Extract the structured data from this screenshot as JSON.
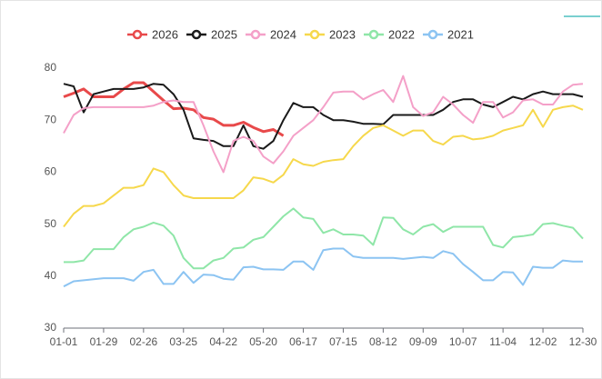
{
  "chart_data": {
    "type": "line",
    "categories": [
      "01-01",
      null,
      null,
      null,
      "01-29",
      null,
      null,
      null,
      "02-26",
      null,
      null,
      null,
      "03-25",
      null,
      null,
      null,
      "04-22",
      null,
      null,
      null,
      "05-20",
      null,
      null,
      null,
      "06-17",
      null,
      null,
      null,
      "07-15",
      null,
      null,
      null,
      "08-12",
      null,
      null,
      null,
      "09-09",
      null,
      null,
      null,
      "10-07",
      null,
      null,
      null,
      "11-04",
      null,
      null,
      null,
      "12-02",
      null,
      null,
      null,
      "12-30"
    ],
    "series": [
      {
        "name": "2026",
        "color": "#e8494a",
        "values": [
          74.5,
          75.2,
          76,
          74.5,
          74.5,
          74.5,
          76,
          77.2,
          77.2,
          75.5,
          73.8,
          72.2,
          72.3,
          72,
          70.5,
          70.2,
          69,
          69,
          69.6,
          68.6,
          67.8,
          68.2,
          67,
          null,
          null,
          null,
          null,
          null,
          null,
          null,
          null,
          null,
          null,
          null,
          null,
          null,
          null,
          null,
          null,
          null,
          null,
          null,
          null,
          null,
          null,
          null,
          null,
          null,
          null,
          null,
          null,
          null,
          null
        ]
      },
      {
        "name": "2025",
        "color": "#1a1a1a",
        "values": [
          77,
          76.5,
          71.5,
          75,
          75.5,
          76,
          76,
          76,
          76.3,
          77,
          76.8,
          75,
          72,
          66.5,
          66.2,
          66,
          65,
          65,
          69,
          65,
          64.5,
          66,
          70,
          73.3,
          72.5,
          72.5,
          71,
          70,
          70,
          69.7,
          69.3,
          69.3,
          69.2,
          71,
          71,
          71,
          71,
          71,
          72,
          73.5,
          74,
          74,
          73,
          72.5,
          73.5,
          74.5,
          74,
          75,
          75.5,
          75,
          75,
          75,
          74.5
        ]
      },
      {
        "name": "2024",
        "color": "#f4a0c8",
        "values": [
          67.5,
          71,
          72.3,
          72.5,
          72.5,
          72.5,
          72.5,
          72.5,
          72.5,
          72.8,
          73.5,
          73.8,
          73.5,
          73.5,
          69,
          64,
          60,
          66,
          66.8,
          66,
          63,
          61.7,
          64,
          67,
          68.5,
          70,
          72.5,
          75.3,
          75.5,
          75.5,
          74,
          75,
          75.8,
          73.5,
          78.5,
          72.5,
          70.8,
          71.5,
          74.5,
          73,
          71,
          69.5,
          73.5,
          73.5,
          70.5,
          71.5,
          73.8,
          74,
          73,
          73,
          75.5,
          76.8,
          77
        ]
      },
      {
        "name": "2023",
        "color": "#f6d84c",
        "values": [
          49.5,
          52,
          53.5,
          53.5,
          54,
          55.5,
          57,
          57,
          57.5,
          60.7,
          60,
          57.5,
          55.5,
          55,
          55,
          55,
          55,
          55,
          56.5,
          59,
          58.7,
          58,
          59.5,
          62.5,
          61.5,
          61.2,
          62,
          62.3,
          62.5,
          65,
          67,
          68.5,
          69,
          68,
          67,
          68,
          68,
          66,
          65.3,
          66.8,
          67,
          66.3,
          66.5,
          67,
          68,
          68.5,
          69,
          72,
          68.7,
          72,
          72.5,
          72.8,
          72
        ]
      },
      {
        "name": "2022",
        "color": "#8fe6a8",
        "values": [
          42.7,
          42.7,
          43,
          45.2,
          45.2,
          45.2,
          47.5,
          49,
          49.5,
          50.3,
          49.7,
          47.8,
          43.5,
          41.5,
          41.5,
          43,
          43.5,
          45.3,
          45.5,
          47,
          47.5,
          49.5,
          51.5,
          53,
          51.3,
          51,
          48.3,
          49,
          48,
          48,
          47.8,
          46,
          51.3,
          51.2,
          49,
          48,
          49.5,
          50,
          48.5,
          49.5,
          49.5,
          49.5,
          49.5,
          46,
          45.5,
          47.5,
          47.7,
          48,
          50,
          50.2,
          49.7,
          49.3,
          47.2
        ]
      },
      {
        "name": "2021",
        "color": "#8cc4f2",
        "values": [
          38,
          39,
          39.2,
          39.4,
          39.6,
          39.6,
          39.6,
          39.1,
          40.8,
          41.2,
          38.5,
          38.5,
          40.8,
          38.7,
          40.3,
          40.2,
          39.5,
          39.3,
          41.7,
          41.8,
          41.3,
          41.3,
          41.2,
          42.8,
          42.8,
          41.2,
          45,
          45.3,
          45.3,
          43.8,
          43.5,
          43.5,
          43.5,
          43.5,
          43.3,
          43.5,
          43.7,
          43.5,
          44.8,
          44.3,
          42.3,
          40.8,
          39.2,
          39.2,
          40.8,
          40.7,
          38.3,
          41.8,
          41.6,
          41.6,
          43,
          42.8,
          42.8
        ]
      }
    ],
    "ylim": [
      30,
      80
    ],
    "yticks": [
      30,
      40,
      50,
      60,
      70,
      80
    ],
    "grid": false,
    "legend": "top"
  }
}
